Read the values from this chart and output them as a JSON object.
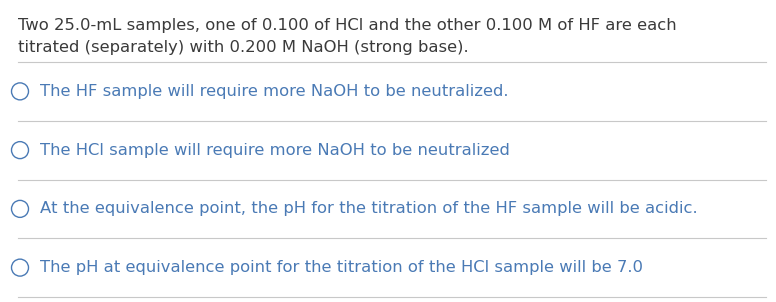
{
  "background_color": "#ffffff",
  "text_color": "#4a7ab5",
  "question_color": "#3a3a3a",
  "line_color": "#c8c8c8",
  "question_line1": "Two 25.0-mL samples, one of 0.100 of HCl and the other 0.100 M of HF are each",
  "question_line2": "titrated (separately) with 0.200 M NaOH (strong base).",
  "options": [
    "The HF sample will require more NaOH to be neutralized.",
    "The HCl sample will require more NaOH to be neutralized",
    "At the equivalence point, the pH for the titration of the HF sample will be acidic.",
    "The pH at equivalence point for the titration of the HCl sample will be 7.0"
  ],
  "font_size_question": 11.8,
  "font_size_options": 11.8,
  "fig_width": 7.76,
  "fig_height": 3.02,
  "dpi": 100
}
